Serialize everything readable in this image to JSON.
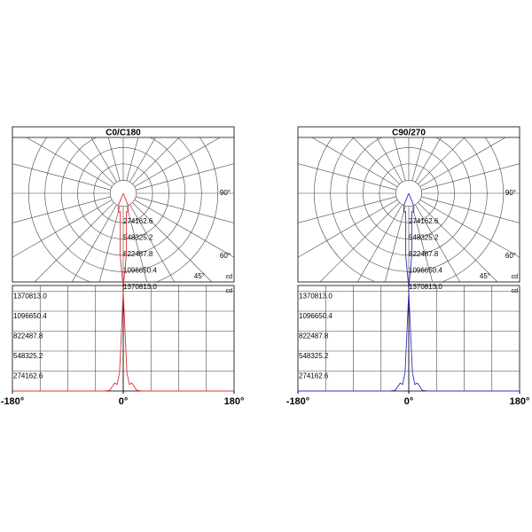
{
  "chart_data": [
    {
      "type": "photometric",
      "title": "C0/C180",
      "unit": "cd",
      "color": "#e03030",
      "x": [
        -180,
        -30,
        -22,
        -18,
        -14,
        -10,
        -6,
        -3,
        0,
        3,
        6,
        10,
        14,
        18,
        22,
        30,
        180
      ],
      "values": [
        0,
        0,
        10000,
        60000,
        110000,
        90000,
        250000,
        800000,
        1370813,
        800000,
        250000,
        90000,
        110000,
        60000,
        10000,
        0,
        0
      ],
      "xlim": [
        -180,
        180
      ],
      "xticks": [
        {
          "value": -180,
          "label": "-180°"
        },
        {
          "value": 0,
          "label": "0°"
        },
        {
          "value": 180,
          "label": "180°"
        }
      ],
      "ylim": [
        0,
        1450000
      ],
      "yticks": [
        274162.6,
        548325.2,
        822487.8,
        1096650.4,
        {
          "value": 1370813,
          "label": "1370813.0"
        }
      ],
      "angle_ticks": [
        {
          "value": 90,
          "label": "90°"
        },
        {
          "value": 60,
          "label": "60°"
        },
        {
          "value": 45,
          "label": "45°"
        }
      ]
    },
    {
      "type": "photometric",
      "title": "C90/270",
      "unit": "cd",
      "color": "#3030c0",
      "x": [
        -180,
        -30,
        -22,
        -18,
        -14,
        -10,
        -6,
        -3,
        0,
        3,
        6,
        10,
        14,
        18,
        22,
        30,
        180
      ],
      "values": [
        0,
        0,
        10000,
        60000,
        110000,
        90000,
        250000,
        800000,
        1370813,
        800000,
        250000,
        90000,
        110000,
        60000,
        10000,
        0,
        0
      ],
      "xlim": [
        -180,
        180
      ],
      "xticks": [
        {
          "value": -180,
          "label": "-180°"
        },
        {
          "value": 0,
          "label": "0°"
        },
        {
          "value": 180,
          "label": "180°"
        }
      ],
      "ylim": [
        0,
        1450000
      ],
      "yticks": [
        274162.6,
        548325.2,
        822487.8,
        1096650.4,
        {
          "value": 1370813,
          "label": "1370813.0"
        }
      ],
      "angle_ticks": [
        {
          "value": 90,
          "label": "90°"
        },
        {
          "value": 60,
          "label": "60°"
        },
        {
          "value": 45,
          "label": "45°"
        }
      ]
    }
  ]
}
